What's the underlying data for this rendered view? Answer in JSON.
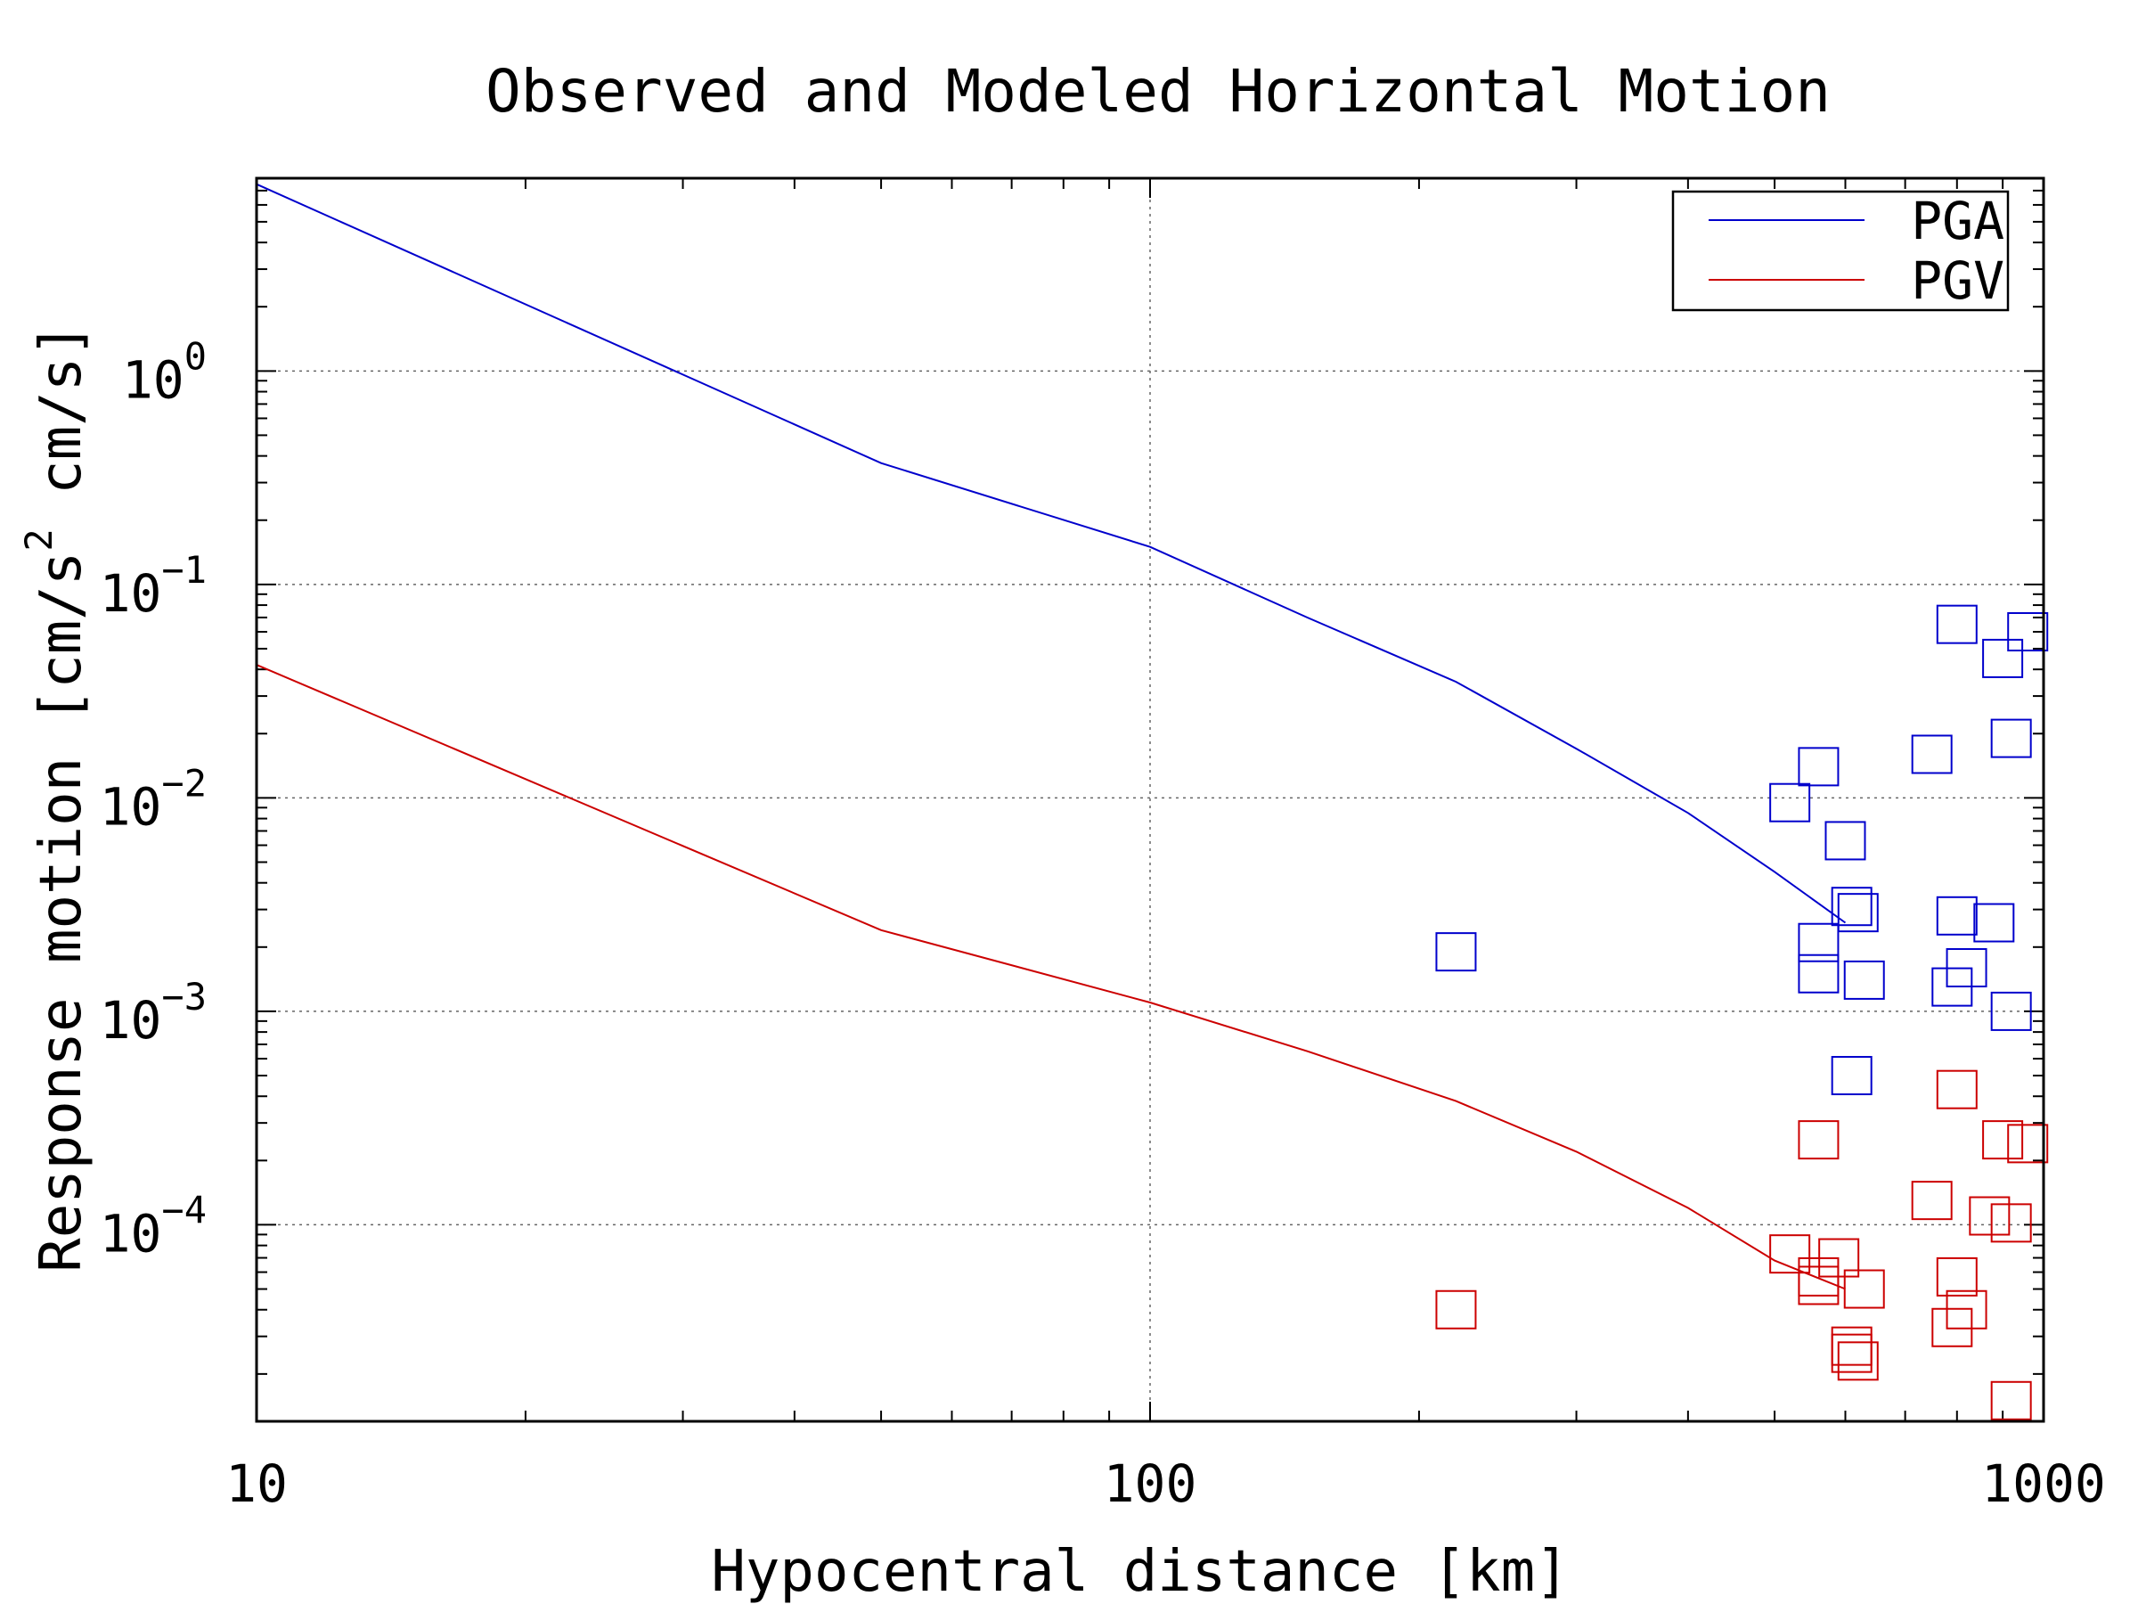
{
  "chart_data": {
    "type": "scatter",
    "title": "Observed and Modeled Horizontal Motion",
    "xlabel": "Hypocentral distance [km]",
    "ylabel_main": "Response motion  [cm/s",
    "ylabel_sup": "2",
    "ylabel_tail": "  cm/s]",
    "x_scale": "log",
    "y_scale": "log",
    "xlim": [
      10,
      1000
    ],
    "ylim": [
      1.2e-05,
      8
    ],
    "grid": true,
    "legend_position": "top-right",
    "x_ticks": [
      {
        "value": 10,
        "label": "10"
      },
      {
        "value": 100,
        "label": "100"
      },
      {
        "value": 1000,
        "label": "1000"
      }
    ],
    "y_ticks": [
      {
        "value": 1,
        "base": "10",
        "exp": "0"
      },
      {
        "value": 0.1,
        "base": "10",
        "exp": "−1"
      },
      {
        "value": 0.01,
        "base": "10",
        "exp": "−2"
      },
      {
        "value": 0.001,
        "base": "10",
        "exp": "−3"
      },
      {
        "value": 0.0001,
        "base": "10",
        "exp": "−4"
      }
    ],
    "series": [
      {
        "name": "PGA",
        "color": "#0000cc",
        "model": [
          [
            10,
            7.5
          ],
          [
            50,
            0.37
          ],
          [
            100,
            0.15
          ],
          [
            150,
            0.07
          ],
          [
            220,
            0.035
          ],
          [
            300,
            0.017
          ],
          [
            400,
            0.0085
          ],
          [
            500,
            0.0045
          ],
          [
            600,
            0.0026
          ]
        ],
        "observed": [
          [
            220,
            0.0019
          ],
          [
            520,
            0.0095
          ],
          [
            560,
            0.014
          ],
          [
            600,
            0.0063
          ],
          [
            610,
            0.0031
          ],
          [
            620,
            0.0029
          ],
          [
            560,
            0.0021
          ],
          [
            560,
            0.0015
          ],
          [
            630,
            0.0014
          ],
          [
            610,
            0.0005
          ],
          [
            750,
            0.016
          ],
          [
            800,
            0.065
          ],
          [
            800,
            0.0028
          ],
          [
            790,
            0.0013
          ],
          [
            820,
            0.0016
          ],
          [
            880,
            0.0026
          ],
          [
            900,
            0.045
          ],
          [
            920,
            0.019
          ],
          [
            920,
            0.001
          ],
          [
            960,
            0.06
          ]
        ]
      },
      {
        "name": "PGV",
        "color": "#cc0000",
        "model": [
          [
            10,
            0.042
          ],
          [
            50,
            0.0024
          ],
          [
            100,
            0.0011
          ],
          [
            150,
            0.00065
          ],
          [
            220,
            0.00038
          ],
          [
            300,
            0.00022
          ],
          [
            400,
            0.00012
          ],
          [
            500,
            6.8e-05
          ],
          [
            600,
            5e-05
          ]
        ],
        "observed": [
          [
            220,
            4e-05
          ],
          [
            520,
            7.3e-05
          ],
          [
            560,
            5.2e-05
          ],
          [
            560,
            5.7e-05
          ],
          [
            590,
            7e-05
          ],
          [
            610,
            2.7e-05
          ],
          [
            610,
            2.5e-05
          ],
          [
            620,
            2.3e-05
          ],
          [
            630,
            5e-05
          ],
          [
            560,
            0.00025
          ],
          [
            750,
            0.00013
          ],
          [
            800,
            0.00043
          ],
          [
            800,
            5.7e-05
          ],
          [
            790,
            3.3e-05
          ],
          [
            820,
            4e-05
          ],
          [
            870,
            0.00011
          ],
          [
            900,
            0.00025
          ],
          [
            920,
            0.000102
          ],
          [
            920,
            1.5e-05
          ],
          [
            960,
            0.00024
          ]
        ]
      }
    ]
  }
}
